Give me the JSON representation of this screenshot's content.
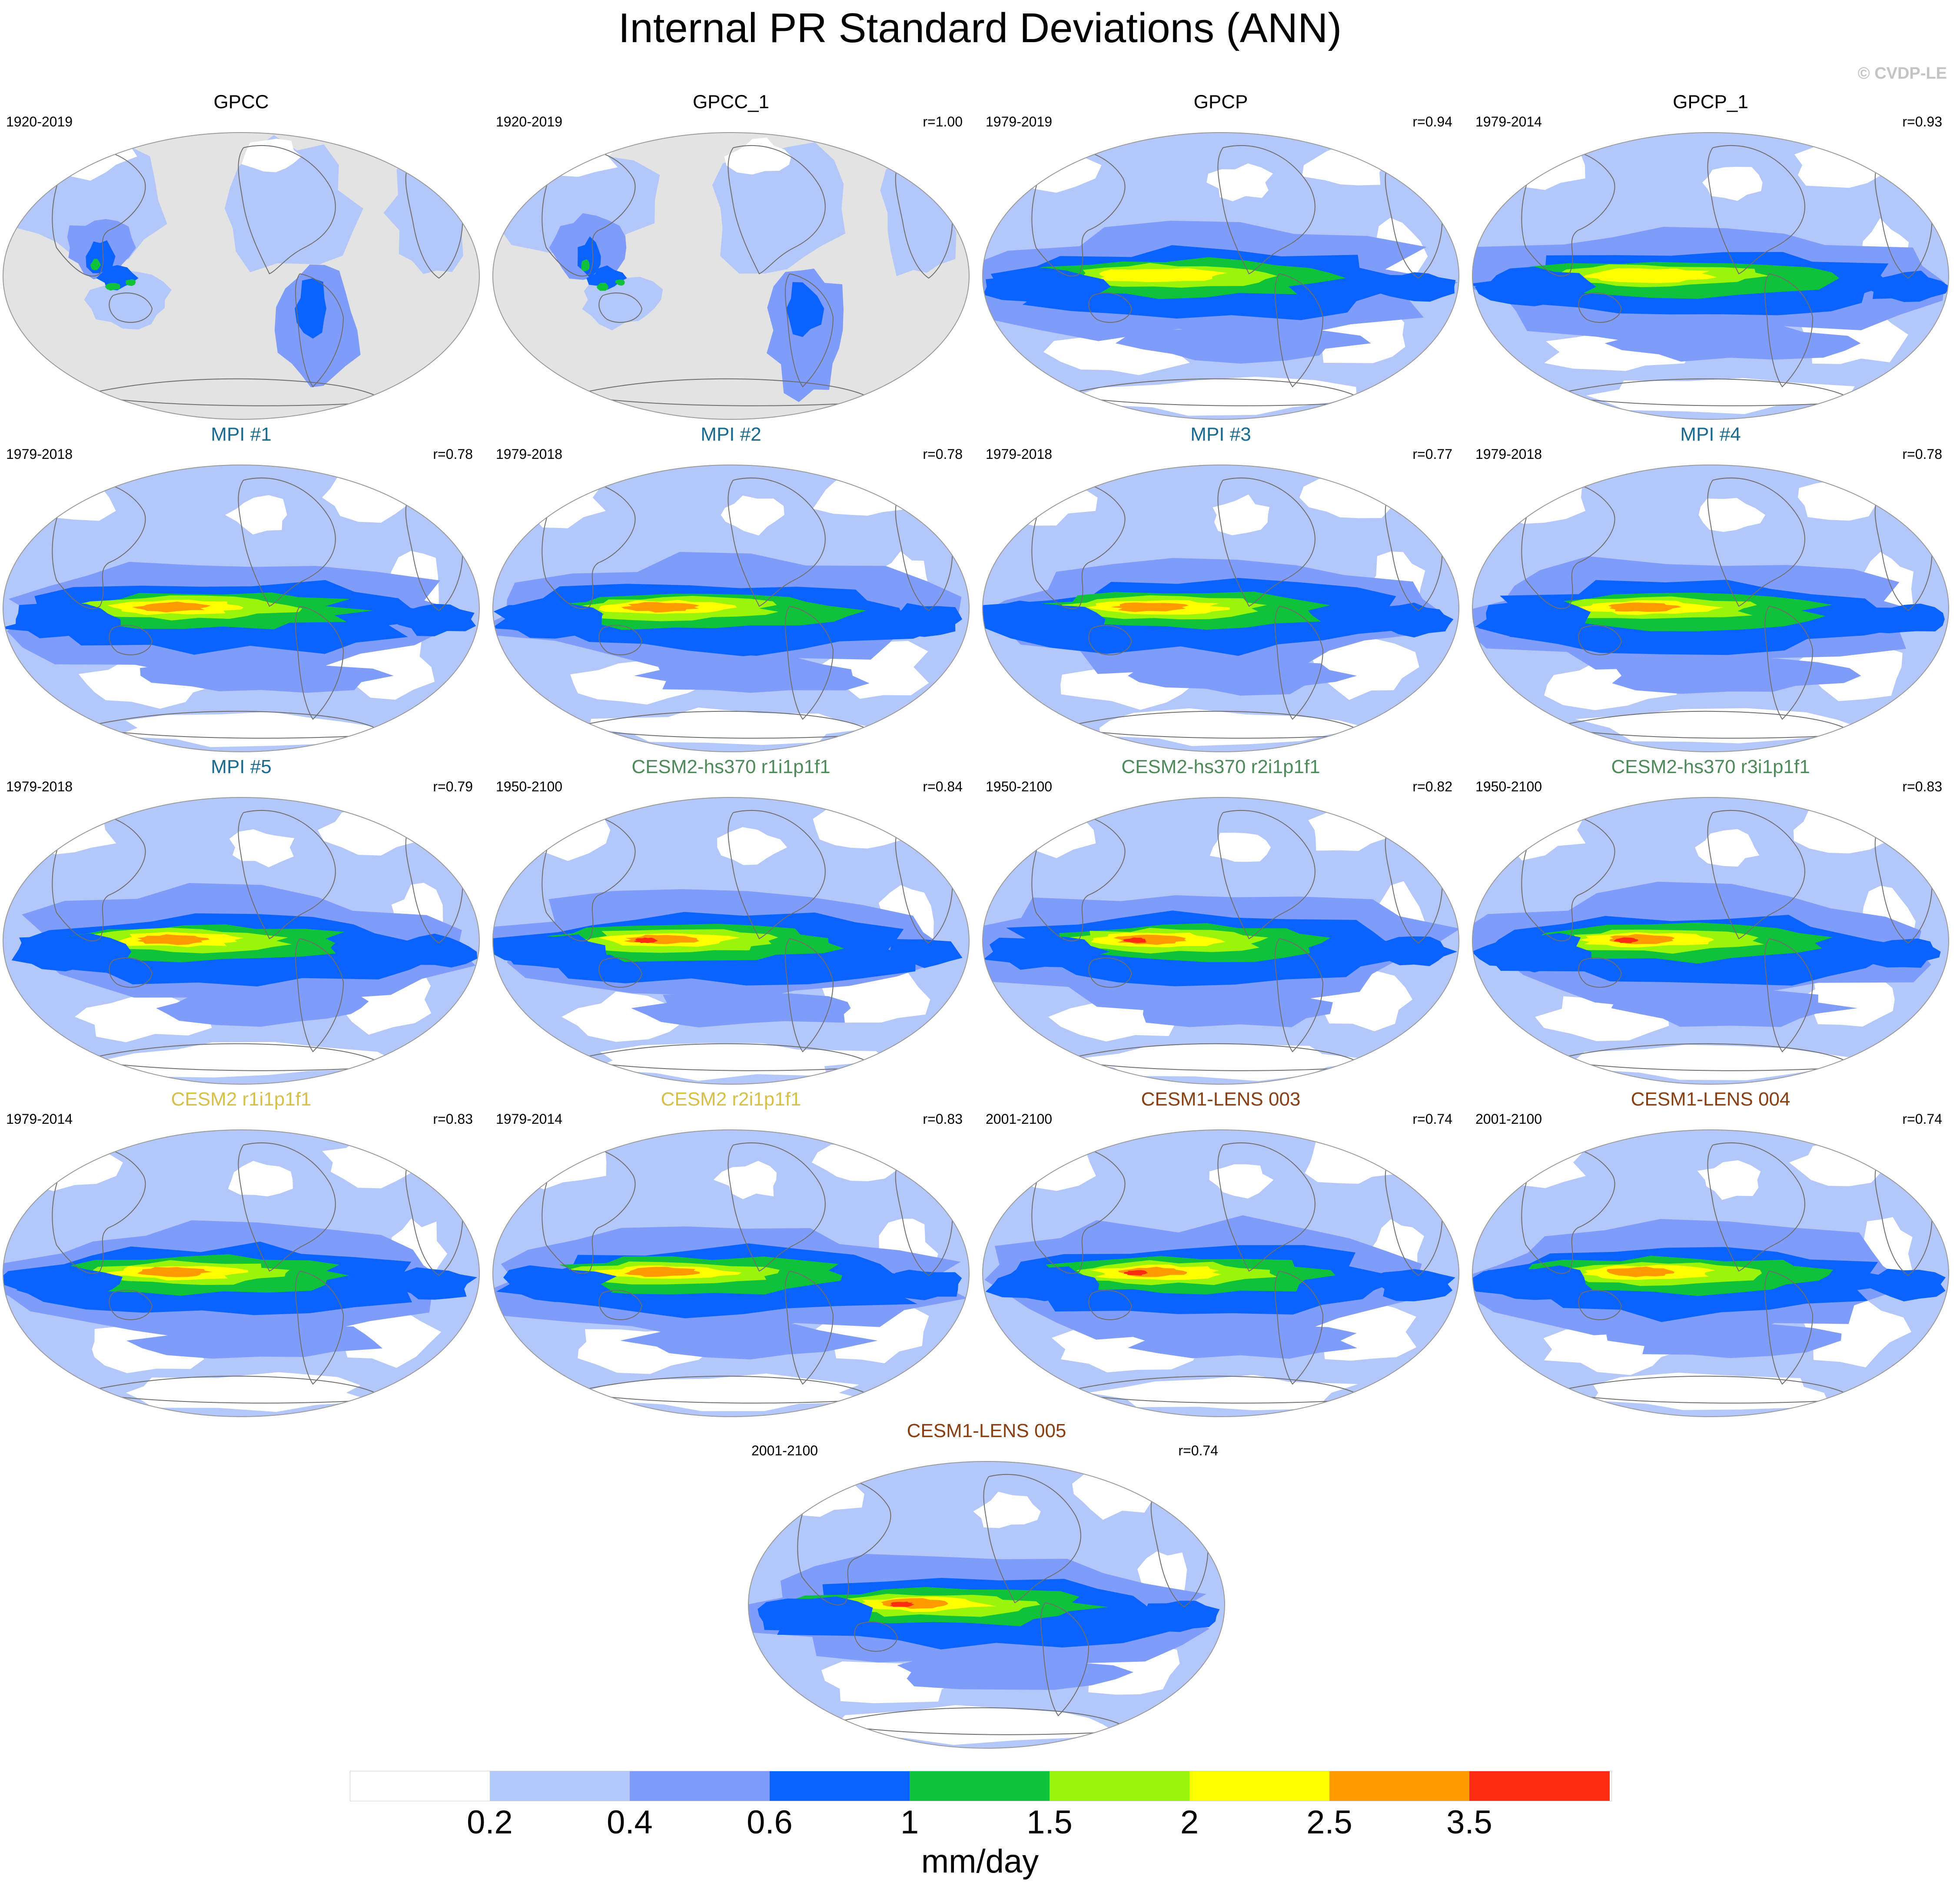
{
  "title": "Internal PR Standard Deviations (ANN)",
  "watermark": "© CVDP-LE",
  "palette": {
    "bins": [
      "#ffffff",
      "#b3c7fb",
      "#7f9cfb",
      "#0a62ff",
      "#0fc23a",
      "#9af50a",
      "#ffff00",
      "#ff9a00",
      "#ff2a12"
    ],
    "land_mask": "#e3e3e3",
    "coast": "#6e6e6e",
    "obs_title": "#000000",
    "mpi_title": "#1a6a8f",
    "cesm2hs_title": "#4e8a5a",
    "cesm2_title": "#d6c04a",
    "cesm1_title": "#8a3f12"
  },
  "panels": [
    {
      "title": "GPCC",
      "period": "1920-2019",
      "corr": "",
      "type": "land",
      "title_color": "#000000"
    },
    {
      "title": "GPCC_1",
      "period": "1920-2019",
      "corr": "r=1.00",
      "type": "land",
      "title_color": "#000000"
    },
    {
      "title": "GPCP",
      "period": "1979-2019",
      "corr": "r=0.94",
      "type": "ocean",
      "peak": 2,
      "title_color": "#000000"
    },
    {
      "title": "GPCP_1",
      "period": "1979-2014",
      "corr": "r=0.93",
      "type": "ocean",
      "peak": 2,
      "title_color": "#000000"
    },
    {
      "title": "MPI #1",
      "period": "1979-2018",
      "corr": "r=0.78",
      "type": "ocean",
      "peak": 3,
      "title_color": "#1a6a8f"
    },
    {
      "title": "MPI #2",
      "period": "1979-2018",
      "corr": "r=0.78",
      "type": "ocean",
      "peak": 3,
      "title_color": "#1a6a8f"
    },
    {
      "title": "MPI #3",
      "period": "1979-2018",
      "corr": "r=0.77",
      "type": "ocean",
      "peak": 3,
      "title_color": "#1a6a8f"
    },
    {
      "title": "MPI #4",
      "period": "1979-2018",
      "corr": "r=0.78",
      "type": "ocean",
      "peak": 3,
      "title_color": "#1a6a8f"
    },
    {
      "title": "MPI #5",
      "period": "1979-2018",
      "corr": "r=0.79",
      "type": "ocean",
      "peak": 3,
      "title_color": "#1a6a8f"
    },
    {
      "title": "CESM2-hs370 r1i1p1f1",
      "period": "1950-2100",
      "corr": "r=0.84",
      "type": "ocean",
      "peak": 4,
      "title_color": "#4e8a5a"
    },
    {
      "title": "CESM2-hs370 r2i1p1f1",
      "period": "1950-2100",
      "corr": "r=0.82",
      "type": "ocean",
      "peak": 4,
      "title_color": "#4e8a5a"
    },
    {
      "title": "CESM2-hs370 r3i1p1f1",
      "period": "1950-2100",
      "corr": "r=0.83",
      "type": "ocean",
      "peak": 4,
      "title_color": "#4e8a5a"
    },
    {
      "title": "CESM2 r1i1p1f1",
      "period": "1979-2014",
      "corr": "r=0.83",
      "type": "ocean",
      "peak": 3,
      "title_color": "#d6c04a"
    },
    {
      "title": "CESM2 r2i1p1f1",
      "period": "1979-2014",
      "corr": "r=0.83",
      "type": "ocean",
      "peak": 3,
      "title_color": "#d6c04a"
    },
    {
      "title": "CESM1-LENS 003",
      "period": "2001-2100",
      "corr": "r=0.74",
      "type": "ocean",
      "peak": 4,
      "title_color": "#8a3f12"
    },
    {
      "title": "CESM1-LENS 004",
      "period": "2001-2100",
      "corr": "r=0.74",
      "type": "ocean",
      "peak": 3,
      "title_color": "#8a3f12"
    },
    {
      "title": "CESM1-LENS 005",
      "period": "2001-2100",
      "corr": "r=0.74",
      "type": "ocean",
      "peak": 4,
      "title_color": "#8a3f12"
    }
  ],
  "colorbar": {
    "ticks": [
      "0.2",
      "0.4",
      "0.6",
      "1",
      "1.5",
      "2",
      "2.5",
      "3.5"
    ],
    "units": "mm/day"
  }
}
